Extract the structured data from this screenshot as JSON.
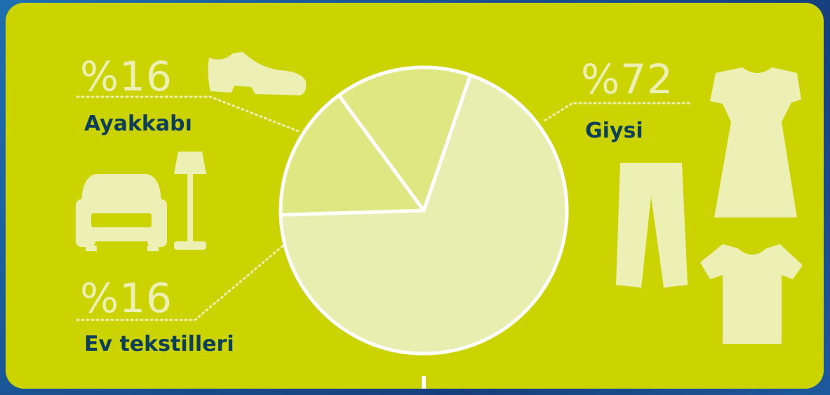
{
  "chart_data": {
    "type": "pie",
    "categories": [
      "Giysi",
      "Ayakkabı",
      "Ev tekstilleri"
    ],
    "values": [
      72,
      16,
      16
    ],
    "labels": [
      "%72",
      "%16",
      "%16"
    ],
    "colors": [
      "#e8eeb0",
      "#dfe783",
      "#dfe783"
    ],
    "background": "#cbd400",
    "label_color": "#0e3f5a",
    "percent_color": "#ecf0b4"
  },
  "icons": [
    "shoe-icon",
    "armchair-icon",
    "floor-lamp-icon",
    "dress-icon",
    "trousers-icon",
    "tshirt-icon"
  ]
}
